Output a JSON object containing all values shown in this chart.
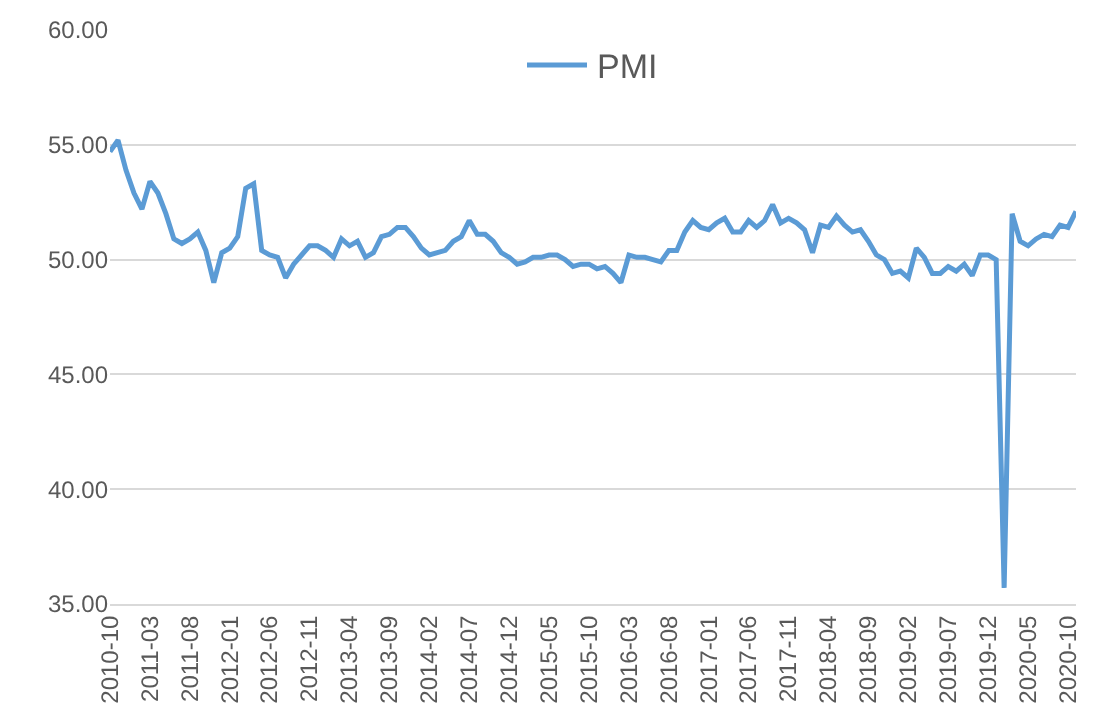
{
  "chart_data": {
    "type": "line",
    "legend": "top",
    "grid": "y",
    "marker": "none",
    "line_style": "solid",
    "categories": [
      "2010-10",
      null,
      null,
      null,
      null,
      "2011-03",
      null,
      null,
      null,
      null,
      "2011-08",
      null,
      null,
      null,
      null,
      "2012-01",
      null,
      null,
      null,
      null,
      "2012-06",
      null,
      null,
      null,
      null,
      "2012-11",
      null,
      null,
      null,
      null,
      "2013-04",
      null,
      null,
      null,
      null,
      "2013-09",
      null,
      null,
      null,
      null,
      "2014-02",
      null,
      null,
      null,
      null,
      "2014-07",
      null,
      null,
      null,
      null,
      "2014-12",
      null,
      null,
      null,
      null,
      "2015-05",
      null,
      null,
      null,
      null,
      "2015-10",
      null,
      null,
      null,
      null,
      "2016-03",
      null,
      null,
      null,
      null,
      "2016-08",
      null,
      null,
      null,
      null,
      "2017-01",
      null,
      null,
      null,
      null,
      "2017-06",
      null,
      null,
      null,
      null,
      "2017-11",
      null,
      null,
      null,
      null,
      "2018-04",
      null,
      null,
      null,
      null,
      "2018-09",
      null,
      null,
      null,
      null,
      "2019-02",
      null,
      null,
      null,
      null,
      "2019-07",
      null,
      null,
      null,
      null,
      "2019-12",
      null,
      null,
      null,
      null,
      "2020-05",
      null,
      null,
      null,
      null,
      "2020-10",
      null
    ],
    "ylim": [
      35,
      60
    ],
    "yticks": [
      {
        "value": 35,
        "label": "35.00"
      },
      {
        "value": 40,
        "label": "40.00"
      },
      {
        "value": 45,
        "label": "45.00"
      },
      {
        "value": 50,
        "label": "50.00"
      },
      {
        "value": 55,
        "label": "55.00"
      },
      {
        "value": 60,
        "label": "60.00"
      }
    ],
    "series": [
      {
        "name": "PMI",
        "color": "#5b9bd5",
        "values": [
          54.7,
          55.2,
          53.9,
          52.9,
          52.2,
          53.4,
          52.9,
          52.0,
          50.9,
          50.7,
          50.9,
          51.2,
          50.4,
          49.0,
          50.3,
          50.5,
          51.0,
          53.1,
          53.3,
          50.4,
          50.2,
          50.1,
          49.2,
          49.8,
          50.2,
          50.6,
          50.6,
          50.4,
          50.1,
          50.9,
          50.6,
          50.8,
          50.1,
          50.3,
          51.0,
          51.1,
          51.4,
          51.4,
          51.0,
          50.5,
          50.2,
          50.3,
          50.4,
          50.8,
          51.0,
          51.7,
          51.1,
          51.1,
          50.8,
          50.3,
          50.1,
          49.8,
          49.9,
          50.1,
          50.1,
          50.2,
          50.2,
          50.0,
          49.7,
          49.8,
          49.8,
          49.6,
          49.7,
          49.4,
          49.0,
          50.2,
          50.1,
          50.1,
          50.0,
          49.9,
          50.4,
          50.4,
          51.2,
          51.7,
          51.4,
          51.3,
          51.6,
          51.8,
          51.2,
          51.2,
          51.7,
          51.4,
          51.7,
          52.4,
          51.6,
          51.8,
          51.6,
          51.3,
          50.3,
          51.5,
          51.4,
          51.9,
          51.5,
          51.2,
          51.3,
          50.8,
          50.2,
          50.0,
          49.4,
          49.5,
          49.2,
          50.5,
          50.1,
          49.4,
          49.4,
          49.7,
          49.5,
          49.8,
          49.3,
          50.2,
          50.2,
          50.0,
          35.7,
          52.0,
          50.8,
          50.6,
          50.9,
          51.1,
          51.0,
          51.5,
          51.4,
          52.1
        ]
      }
    ]
  }
}
